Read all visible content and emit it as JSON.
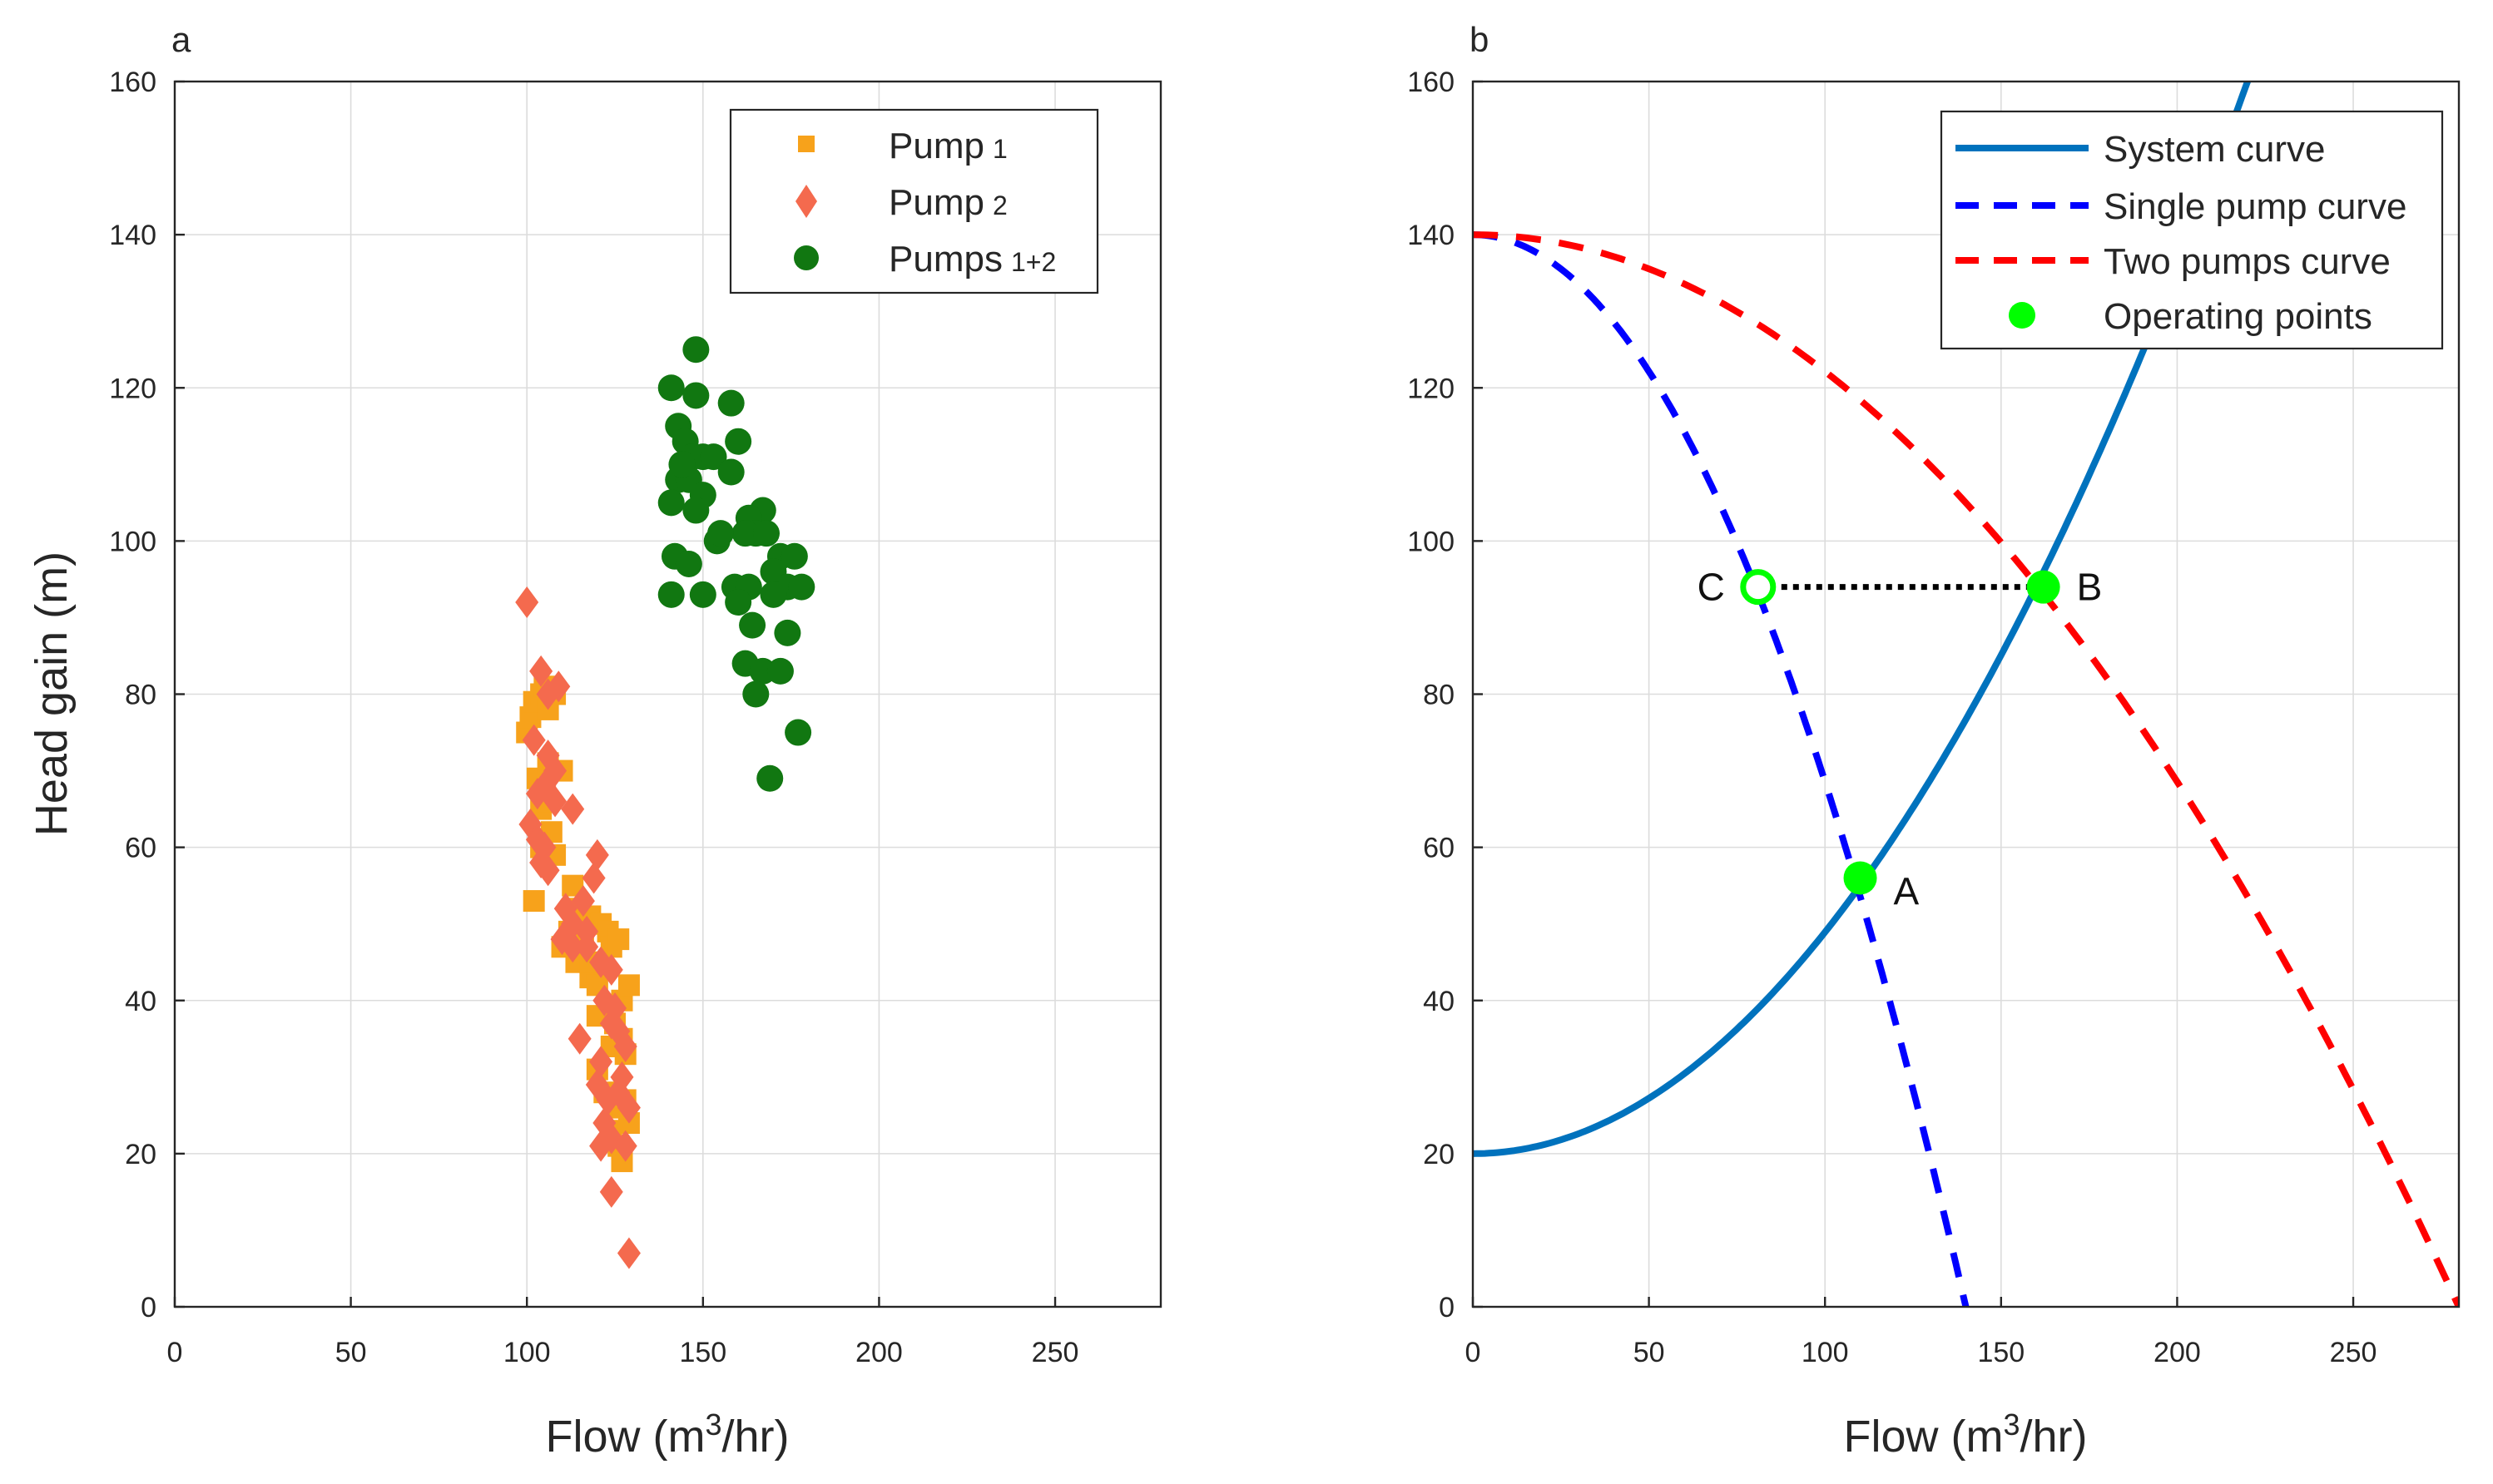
{
  "chart_data": [
    {
      "type": "scatter",
      "panel_label": "a",
      "xlabel": "Flow (m",
      "xlabel_sup": "3",
      "xlabel_end": "/hr)",
      "ylabel": "Head gain (m)",
      "xlim": [
        0,
        280
      ],
      "ylim": [
        0,
        160
      ],
      "xticks": [
        0,
        50,
        100,
        150,
        200,
        250
      ],
      "yticks": [
        0,
        20,
        40,
        60,
        80,
        100,
        120,
        140,
        160
      ],
      "grid": true,
      "legend_position": "top-right",
      "series": [
        {
          "name": "Pump",
          "name_suffix": "1",
          "marker": "square",
          "color": "#f7a21b",
          "points": [
            [
              100,
              75
            ],
            [
              101,
              77
            ],
            [
              102,
              79
            ],
            [
              104,
              80
            ],
            [
              106,
              78
            ],
            [
              108,
              80
            ],
            [
              105,
              81
            ],
            [
              103,
              69
            ],
            [
              106,
              71
            ],
            [
              110,
              70
            ],
            [
              102,
              53
            ],
            [
              104,
              60
            ],
            [
              107,
              62
            ],
            [
              104,
              65
            ],
            [
              108,
              59
            ],
            [
              106,
              66
            ],
            [
              113,
              55
            ],
            [
              115,
              52
            ],
            [
              112,
              49
            ],
            [
              114,
              45
            ],
            [
              118,
              51
            ],
            [
              118,
              43
            ],
            [
              121,
              50
            ],
            [
              123,
              49
            ],
            [
              124,
              47
            ],
            [
              126,
              48
            ],
            [
              120,
              42
            ],
            [
              125,
              37
            ],
            [
              127,
              40
            ],
            [
              129,
              42
            ],
            [
              120,
              38
            ],
            [
              124,
              34
            ],
            [
              127,
              35
            ],
            [
              128,
              33
            ],
            [
              120,
              31
            ],
            [
              122,
              28
            ],
            [
              125,
              26
            ],
            [
              128,
              27
            ],
            [
              124,
              23
            ],
            [
              126,
              21
            ],
            [
              127,
              19
            ],
            [
              129,
              24
            ],
            [
              118,
              45
            ],
            [
              116,
              49
            ],
            [
              110,
              47
            ]
          ]
        },
        {
          "name": "Pump",
          "name_suffix": "2",
          "marker": "diamond",
          "color": "#f46a4e",
          "points": [
            [
              100,
              92
            ],
            [
              104,
              83
            ],
            [
              106,
              80
            ],
            [
              109,
              81
            ],
            [
              102,
              74
            ],
            [
              106,
              72
            ],
            [
              108,
              70
            ],
            [
              103,
              67
            ],
            [
              105,
              68
            ],
            [
              108,
              66
            ],
            [
              101,
              63
            ],
            [
              103,
              61
            ],
            [
              105,
              60
            ],
            [
              104,
              58
            ],
            [
              106,
              57
            ],
            [
              113,
              65
            ],
            [
              111,
              52
            ],
            [
              113,
              50
            ],
            [
              116,
              53
            ],
            [
              119,
              56
            ],
            [
              120,
              59
            ],
            [
              110,
              48
            ],
            [
              113,
              47
            ],
            [
              117,
              49
            ],
            [
              121,
              45
            ],
            [
              124,
              44
            ],
            [
              122,
              40
            ],
            [
              124,
              37
            ],
            [
              126,
              36
            ],
            [
              115,
              35
            ],
            [
              128,
              34
            ],
            [
              121,
              32
            ],
            [
              120,
              29
            ],
            [
              123,
              27
            ],
            [
              126,
              28
            ],
            [
              129,
              26
            ],
            [
              122,
              24
            ],
            [
              124,
              22
            ],
            [
              128,
              21
            ],
            [
              124,
              15
            ],
            [
              129,
              7
            ],
            [
              117,
              47
            ],
            [
              125,
              39
            ],
            [
              127,
              30
            ],
            [
              121,
              21
            ]
          ]
        },
        {
          "name": "Pumps",
          "name_suffix": "1+2",
          "marker": "circle",
          "color": "#117711",
          "points": [
            [
              148,
              125
            ],
            [
              141,
              120
            ],
            [
              148,
              119
            ],
            [
              158,
              118
            ],
            [
              143,
              115
            ],
            [
              145,
              113
            ],
            [
              160,
              113
            ],
            [
              147,
              111
            ],
            [
              150,
              111
            ],
            [
              153,
              111
            ],
            [
              143,
              108
            ],
            [
              146,
              108
            ],
            [
              141,
              105
            ],
            [
              150,
              106
            ],
            [
              158,
              109
            ],
            [
              167,
              104
            ],
            [
              163,
              103
            ],
            [
              165,
              101
            ],
            [
              162,
              101
            ],
            [
              154,
              100
            ],
            [
              168,
              101
            ],
            [
              172,
              98
            ],
            [
              176,
              98
            ],
            [
              142,
              98
            ],
            [
              146,
              97
            ],
            [
              170,
              96
            ],
            [
              174,
              94
            ],
            [
              178,
              94
            ],
            [
              159,
              94
            ],
            [
              163,
              94
            ],
            [
              141,
              93
            ],
            [
              150,
              93
            ],
            [
              160,
              92
            ],
            [
              170,
              93
            ],
            [
              164,
              89
            ],
            [
              174,
              88
            ],
            [
              162,
              84
            ],
            [
              167,
              83
            ],
            [
              172,
              83
            ],
            [
              165,
              80
            ],
            [
              177,
              75
            ],
            [
              169,
              69
            ],
            [
              155,
              101
            ],
            [
              148,
              104
            ],
            [
              144,
              110
            ]
          ]
        }
      ]
    },
    {
      "type": "line",
      "panel_label": "b",
      "xlabel": "Flow (m",
      "xlabel_sup": "3",
      "xlabel_end": "/hr)",
      "xlim": [
        0,
        280
      ],
      "ylim": [
        0,
        160
      ],
      "xticks": [
        0,
        50,
        100,
        150,
        200,
        250
      ],
      "yticks": [
        0,
        20,
        40,
        60,
        80,
        100,
        120,
        140,
        160
      ],
      "grid": true,
      "legend_position": "top-right",
      "series": [
        {
          "name": "System curve",
          "style": "solid",
          "color": "#0072bd",
          "equation": "H = 20 + 0.002893*Q^2",
          "x_range": [
            0,
            230
          ]
        },
        {
          "name": "Single pump curve",
          "style": "dashed",
          "color": "#0000ff",
          "equation": "H = 140 - 0.007143*Q^2",
          "x_range": [
            0,
            140
          ]
        },
        {
          "name": "Two pumps curve",
          "style": "dashed",
          "color": "#ff0000",
          "equation": "H = 140 - 0.001786*Q^2",
          "x_range": [
            0,
            280
          ]
        },
        {
          "name": "Operating points",
          "style": "marker",
          "color": "#00ff00"
        }
      ],
      "operating_points": [
        {
          "label": "A",
          "x": 110,
          "y": 56,
          "filled": true
        },
        {
          "label": "B",
          "x": 162,
          "y": 94,
          "filled": true
        },
        {
          "label": "C",
          "x": 81,
          "y": 94,
          "filled": false
        }
      ],
      "connector": {
        "from": "C",
        "to": "B",
        "style": "dotted",
        "color": "#000000"
      }
    }
  ]
}
